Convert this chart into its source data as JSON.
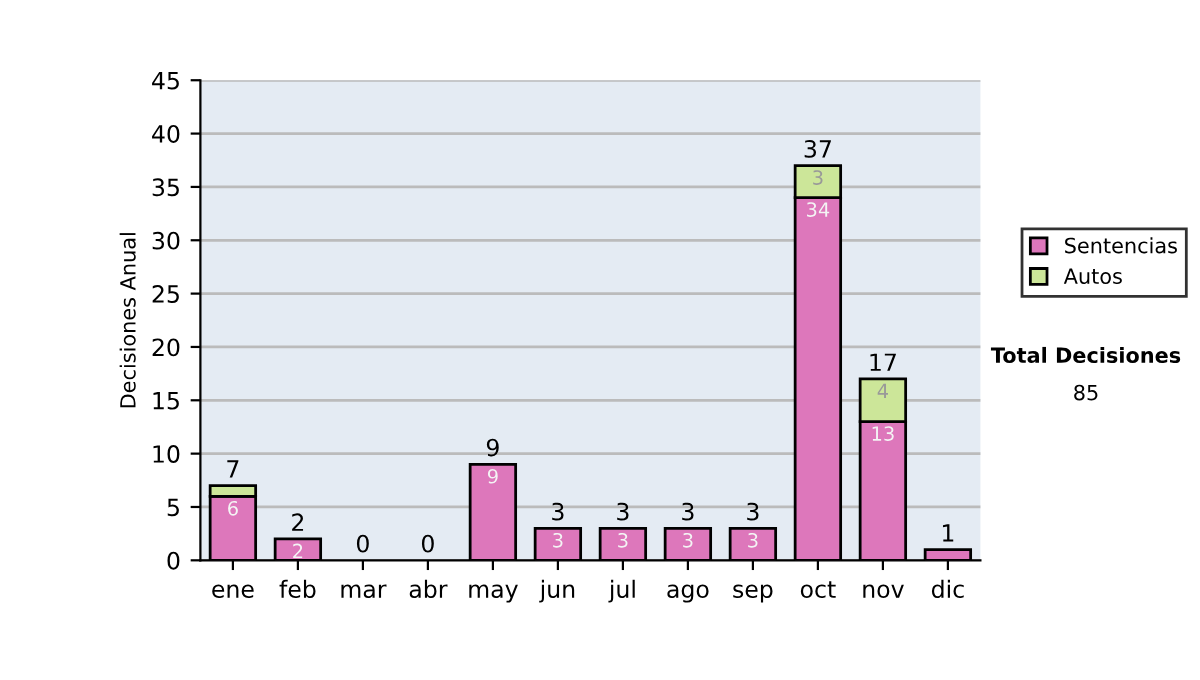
{
  "chart_data": {
    "type": "bar",
    "stacked": true,
    "ylabel": "Decisiones Anual",
    "categories": [
      "ene",
      "feb",
      "mar",
      "abr",
      "may",
      "jun",
      "jul",
      "ago",
      "sep",
      "oct",
      "nov",
      "dic"
    ],
    "series": [
      {
        "name": "Sentencias",
        "color": "#dd77bb",
        "values": [
          6,
          2,
          0,
          0,
          9,
          3,
          3,
          3,
          3,
          34,
          13,
          1
        ],
        "value_labels": [
          "6",
          "2",
          null,
          null,
          "9",
          "3",
          "3",
          "3",
          "3",
          "34",
          "13",
          null
        ]
      },
      {
        "name": "Autos",
        "color": "#cce699",
        "values": [
          1,
          0,
          0,
          0,
          0,
          0,
          0,
          0,
          0,
          3,
          4,
          0
        ],
        "value_labels": [
          null,
          null,
          null,
          null,
          null,
          null,
          null,
          null,
          null,
          "3",
          "4",
          null
        ]
      }
    ],
    "totals": [
      "7",
      "2",
      "0",
      "0",
      "9",
      "3",
      "3",
      "3",
      "3",
      "37",
      "17",
      "1"
    ],
    "ylim": [
      0,
      45
    ],
    "yticks": [
      0,
      5,
      10,
      15,
      20,
      25,
      30,
      35,
      40,
      45
    ],
    "grid": "y",
    "legend": "right",
    "annotations": [
      "Total Decisiones",
      "85"
    ]
  }
}
